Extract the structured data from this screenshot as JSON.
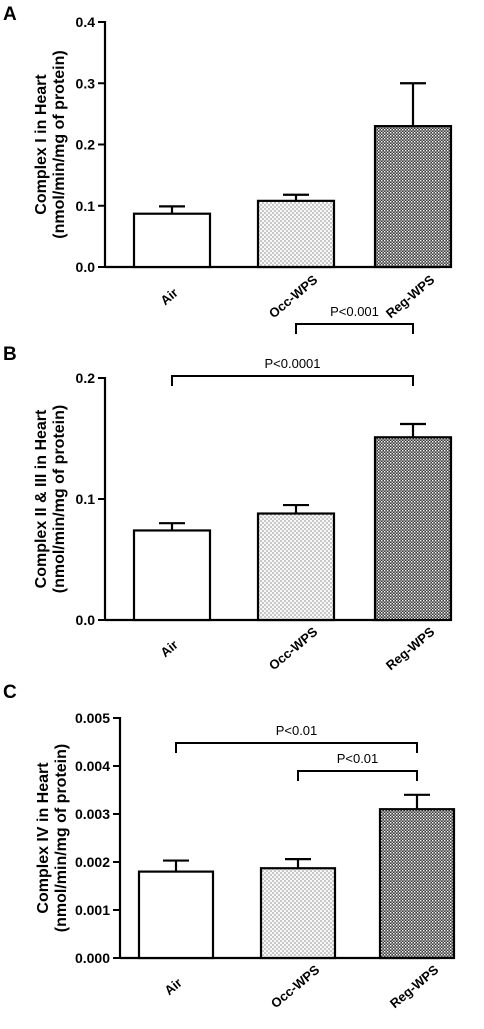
{
  "chart_data": [
    {
      "panel": "A",
      "type": "bar",
      "ylabel_line1": "Complex I in Heart",
      "ylabel_line2": "(nmol/min/mg of protein)",
      "categories": [
        "Air",
        "Occ-WPS",
        "Reg-WPS"
      ],
      "values": [
        0.087,
        0.108,
        0.23
      ],
      "errors": [
        0.012,
        0.01,
        0.07
      ],
      "ylim": [
        0,
        0.4
      ],
      "yticks": [
        "0.0",
        "0.1",
        "0.2",
        "0.3",
        "0.4"
      ],
      "bar_fills": [
        "white",
        "light-dots",
        "dark-checker"
      ],
      "significance": []
    },
    {
      "panel": "B",
      "type": "bar",
      "ylabel_line1": "Complex II & III in Heart",
      "ylabel_line2": "(nmol/min/mg of protein)",
      "categories": [
        "Air",
        "Occ-WPS",
        "Reg-WPS"
      ],
      "values": [
        0.074,
        0.088,
        0.151
      ],
      "errors": [
        0.006,
        0.007,
        0.011
      ],
      "ylim": [
        0,
        0.2
      ],
      "yticks": [
        "0.0",
        "0.1",
        "0.2"
      ],
      "bar_fills": [
        "white",
        "light-dots",
        "dark-checker"
      ],
      "significance": [
        {
          "from": 0,
          "to": 2,
          "label": "P<0.0001"
        },
        {
          "from": 1,
          "to": 2,
          "label": "P<0.001"
        }
      ]
    },
    {
      "panel": "C",
      "type": "bar",
      "ylabel_line1": "Complex IV in Heart",
      "ylabel_line2": "(nmol/min/mg of protein)",
      "categories": [
        "Air",
        "Occ-WPS",
        "Reg-WPS"
      ],
      "values": [
        0.0018,
        0.00187,
        0.0031
      ],
      "errors": [
        0.00023,
        0.00019,
        0.0003
      ],
      "ylim": [
        0,
        0.005
      ],
      "yticks": [
        "0.000",
        "0.001",
        "0.002",
        "0.003",
        "0.004",
        "0.005"
      ],
      "bar_fills": [
        "white",
        "light-dots",
        "dark-checker"
      ],
      "significance": [
        {
          "from": 0,
          "to": 2,
          "label": "P<0.01"
        },
        {
          "from": 1,
          "to": 2,
          "label": "P<0.01"
        }
      ]
    }
  ]
}
